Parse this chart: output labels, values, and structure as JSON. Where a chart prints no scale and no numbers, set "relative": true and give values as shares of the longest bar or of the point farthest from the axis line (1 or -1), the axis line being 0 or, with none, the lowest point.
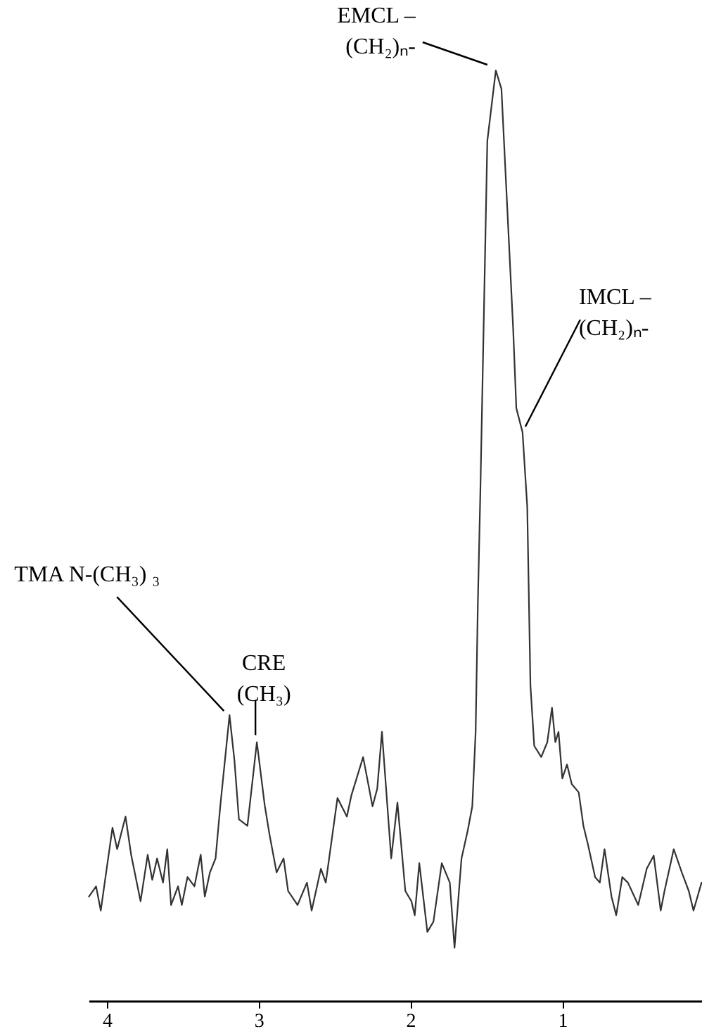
{
  "chart_data": {
    "type": "line",
    "relative": true,
    "xlim": [
      4.12,
      0.08
    ],
    "xticks": [
      4,
      3,
      2,
      1
    ],
    "tick_labels": "x",
    "grid": false,
    "x": [
      4.118,
      4.071,
      4.04,
      3.963,
      3.932,
      3.877,
      3.84,
      3.778,
      3.731,
      3.701,
      3.669,
      3.63,
      3.602,
      3.577,
      3.531,
      3.506,
      3.469,
      3.423,
      3.382,
      3.355,
      3.321,
      3.284,
      3.253,
      3.192,
      3.16,
      3.13,
      3.074,
      3.012,
      2.96,
      2.929,
      2.882,
      2.836,
      2.806,
      2.744,
      2.682,
      2.651,
      2.59,
      2.558,
      2.481,
      2.419,
      2.389,
      2.312,
      2.25,
      2.219,
      2.188,
      2.127,
      2.086,
      2.034,
      1.994,
      1.972,
      1.942,
      1.889,
      1.849,
      1.794,
      1.741,
      1.71,
      1.664,
      1.623,
      1.593,
      1.571,
      1.556,
      1.54,
      1.494,
      1.438,
      1.401,
      1.324,
      1.303,
      1.262,
      1.231,
      1.21,
      1.185,
      1.139,
      1.099,
      1.068,
      1.046,
      1.025,
      1.0,
      0.969,
      0.938,
      0.892,
      0.861,
      0.831,
      0.784,
      0.753,
      0.722,
      0.676,
      0.645,
      0.605,
      0.568,
      0.5,
      0.444,
      0.398,
      0.352,
      0.327,
      0.266,
      0.213,
      0.167,
      0.136,
      0.083
    ],
    "series": [
      {
        "color": "#333333",
        "values": [
          0.112,
          0.123,
          0.097,
          0.186,
          0.163,
          0.198,
          0.157,
          0.107,
          0.157,
          0.13,
          0.153,
          0.127,
          0.163,
          0.103,
          0.123,
          0.103,
          0.133,
          0.123,
          0.157,
          0.112,
          0.138,
          0.153,
          0.209,
          0.307,
          0.259,
          0.195,
          0.188,
          0.278,
          0.21,
          0.179,
          0.138,
          0.153,
          0.118,
          0.103,
          0.127,
          0.097,
          0.142,
          0.127,
          0.218,
          0.198,
          0.221,
          0.262,
          0.209,
          0.228,
          0.289,
          0.153,
          0.213,
          0.118,
          0.107,
          0.092,
          0.148,
          0.074,
          0.085,
          0.148,
          0.127,
          0.057,
          0.153,
          0.183,
          0.209,
          0.289,
          0.43,
          0.546,
          0.924,
          1.0,
          0.98,
          0.723,
          0.637,
          0.611,
          0.531,
          0.339,
          0.274,
          0.262,
          0.278,
          0.315,
          0.278,
          0.289,
          0.239,
          0.254,
          0.233,
          0.224,
          0.188,
          0.168,
          0.133,
          0.127,
          0.163,
          0.112,
          0.092,
          0.133,
          0.127,
          0.103,
          0.142,
          0.156,
          0.097,
          0.118,
          0.163,
          0.138,
          0.118,
          0.097,
          0.127
        ]
      }
    ],
    "annotations": [
      {
        "text": "EMCL –\n(CH₂)ₙ-",
        "x": 1.438,
        "y": 1.0
      },
      {
        "text": "IMCL –\n(CH₂)ₙ-",
        "x": 1.262,
        "y": 0.611
      },
      {
        "text": "TMA N-(CH₃) ₃",
        "x": 3.192,
        "y": 0.307
      },
      {
        "text": "CRE\n(CH₃)",
        "x": 3.012,
        "y": 0.278
      }
    ]
  }
}
